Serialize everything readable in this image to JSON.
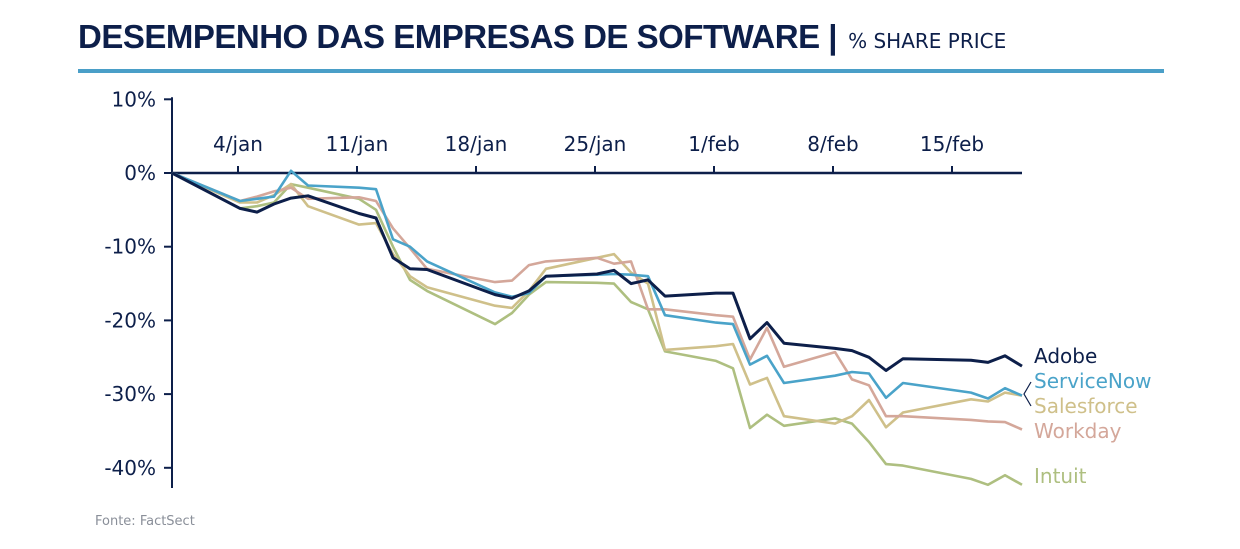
{
  "chart_data": {
    "type": "line",
    "title": "DESEMPENHO DAS EMPRESAS DE SOFTWARE",
    "subtitle": "% SHARE PRICE",
    "source": "Fonte: FactSect",
    "xlabel": "",
    "ylabel": "",
    "ylim": [
      -43,
      10
    ],
    "yticks": [
      10,
      0,
      -10,
      -20,
      -30,
      -40
    ],
    "ytick_labels": [
      "10%",
      "0%",
      "-10%",
      "-20%",
      "-30%",
      "-40%"
    ],
    "xtick_labels": [
      "4/jan",
      "11/jan",
      "18/jan",
      "25/jan",
      "1/feb",
      "8/feb",
      "15/feb"
    ],
    "grid": false,
    "legend": "right, inline labels at line ends",
    "x": [
      "31/dec",
      "4/jan",
      "5/jan",
      "6/jan",
      "7/jan",
      "8/jan",
      "11/jan",
      "12/jan",
      "13/jan",
      "14/jan",
      "15/jan",
      "19/jan",
      "20/jan",
      "21/jan",
      "22/jan",
      "25/jan",
      "26/jan",
      "27/jan",
      "28/jan",
      "29/jan",
      "1/feb",
      "2/feb",
      "3/feb",
      "4/feb",
      "5/feb",
      "8/feb",
      "9/feb",
      "10/feb",
      "11/feb",
      "12/feb",
      "16/feb",
      "17/feb",
      "18/feb",
      "19/feb"
    ],
    "series": [
      {
        "name": "Adobe",
        "color": "#0d1f4a",
        "values": [
          0,
          -4.8,
          -5.3,
          -4.2,
          -3.4,
          -3.1,
          -5.5,
          -6.1,
          -11.5,
          -13,
          -13.1,
          -16.5,
          -17,
          -16,
          -14,
          -13.7,
          -13.2,
          -15,
          -14.5,
          -16.7,
          -16.3,
          -16.3,
          -22.5,
          -20.3,
          -23.1,
          -23.8,
          -24.1,
          -25,
          -26.8,
          -25.2,
          -25.4,
          -25.7,
          -24.8,
          -26.2
        ]
      },
      {
        "name": "ServiceNow",
        "color": "#4aa3c9",
        "values": [
          0,
          -3.8,
          -3.5,
          -3.2,
          0.3,
          -1.7,
          -2,
          -2.2,
          -9,
          -10,
          -12,
          -16.2,
          -16.8,
          -16.3,
          -14,
          -13.8,
          -13.7,
          -13.8,
          -14,
          -19.3,
          -20.3,
          -20.5,
          -26,
          -24.8,
          -28.5,
          -27.5,
          -27,
          -27.2,
          -30.5,
          -28.5,
          -29.8,
          -30.6,
          -29.2,
          -30.2
        ]
      },
      {
        "name": "Salesforce",
        "color": "#cfc08a",
        "values": [
          0,
          -4,
          -4,
          -3,
          -1.5,
          -4.5,
          -7,
          -6.8,
          -11,
          -14,
          -15.5,
          -18,
          -18.3,
          -16,
          -13,
          -11.5,
          -11,
          -13.5,
          -15,
          -24,
          -23.5,
          -23.2,
          -28.7,
          -27.8,
          -33,
          -34,
          -33,
          -30.8,
          -34.5,
          -32.5,
          -30.7,
          -31,
          -29.8,
          -30.2
        ]
      },
      {
        "name": "Workday",
        "color": "#d4a79a",
        "values": [
          0,
          -3.8,
          -3.2,
          -2.5,
          -2,
          -3.5,
          -3.3,
          -3.8,
          -7.5,
          -10.2,
          -13,
          -14.8,
          -14.6,
          -12.5,
          -12,
          -11.5,
          -12.3,
          -12,
          -18.5,
          -18.5,
          -19.3,
          -19.5,
          -25.3,
          -21,
          -26.3,
          -24.3,
          -28,
          -28.8,
          -33,
          -33,
          -33.5,
          -33.7,
          -33.8,
          -34.8
        ]
      },
      {
        "name": "Intuit",
        "color": "#aebf80",
        "values": [
          0,
          -4.8,
          -4.5,
          -4,
          -1.5,
          -2,
          -3.5,
          -5,
          -10,
          -14.5,
          -16,
          -20.5,
          -19,
          -16.5,
          -14.8,
          -14.9,
          -15,
          -17.5,
          -18.5,
          -24.2,
          -25.5,
          -26.5,
          -34.6,
          -32.8,
          -34.3,
          -33.3,
          -34,
          -36.5,
          -39.5,
          -39.7,
          -41.5,
          -42.3,
          -41,
          -42.3
        ]
      }
    ]
  }
}
